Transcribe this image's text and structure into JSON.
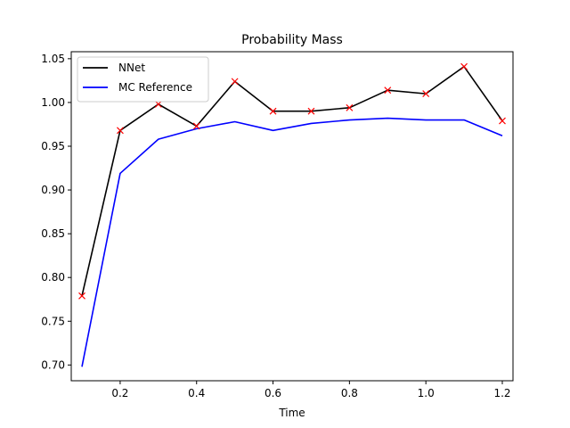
{
  "chart_data": {
    "type": "line",
    "title": "Probability Mass",
    "xlabel": "Time",
    "ylabel": "",
    "xlim": [
      0.072,
      1.228
    ],
    "ylim": [
      0.682,
      1.058
    ],
    "x_ticks": [
      0.2,
      0.4,
      0.6,
      0.8,
      1.0,
      1.2
    ],
    "x_tick_labels": [
      "0.2",
      "0.4",
      "0.6",
      "0.8",
      "1.0",
      "1.2"
    ],
    "y_ticks": [
      0.7,
      0.75,
      0.8,
      0.85,
      0.9,
      0.95,
      1.0,
      1.05
    ],
    "y_tick_labels": [
      "0.70",
      "0.75",
      "0.80",
      "0.85",
      "0.90",
      "0.95",
      "1.00",
      "1.05"
    ],
    "grid": false,
    "legend_position": "top-left",
    "x": [
      0.1,
      0.2,
      0.3,
      0.4,
      0.5,
      0.6,
      0.7,
      0.8,
      0.9,
      1.0,
      1.1,
      1.2
    ],
    "series": [
      {
        "name": "NNet",
        "color": "#000000",
        "marker": "x",
        "marker_color": "#ff0000",
        "values": [
          0.779,
          0.968,
          0.998,
          0.973,
          1.024,
          0.99,
          0.99,
          0.994,
          1.014,
          1.01,
          1.041,
          0.979
        ]
      },
      {
        "name": "MC Reference",
        "color": "#0000ff",
        "marker": "",
        "values": [
          0.698,
          0.919,
          0.958,
          0.97,
          0.978,
          0.968,
          0.976,
          0.98,
          0.982,
          0.98,
          0.98,
          0.962
        ]
      }
    ]
  }
}
